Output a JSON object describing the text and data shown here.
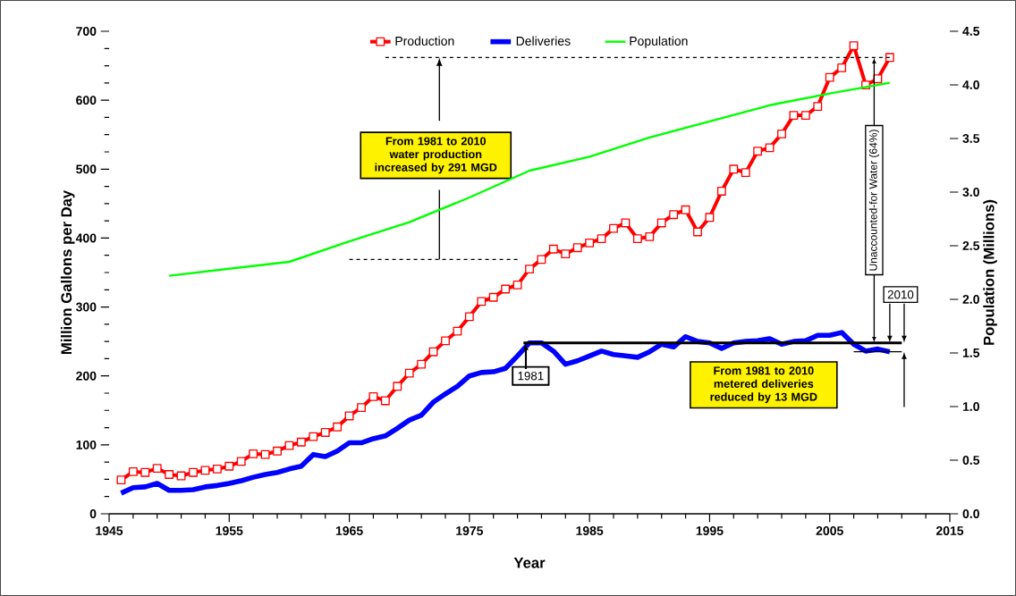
{
  "chart_data": {
    "type": "line",
    "xlabel": "Year",
    "ylabel": "Million Gallons per Day",
    "y2label": "Population (Millions)",
    "xlim": [
      1945,
      2015
    ],
    "xticks": [
      1945,
      1955,
      1965,
      1975,
      1985,
      1995,
      2005,
      2015
    ],
    "ylim": [
      0,
      700
    ],
    "yticks": [
      0,
      100,
      200,
      300,
      400,
      500,
      600,
      700
    ],
    "y2lim": [
      0,
      4.5
    ],
    "y2ticks": [
      {
        "value": 0,
        "label": "0.0"
      },
      {
        "value": 0.5,
        "label": "0.5"
      },
      {
        "value": 1,
        "label": "1.0"
      },
      {
        "value": 1.5,
        "label": "1.5"
      },
      {
        "value": 2,
        "label": "2.0"
      },
      {
        "value": 2.5,
        "label": "2.5"
      },
      {
        "value": 3,
        "label": "3.0"
      },
      {
        "value": 3.5,
        "label": "3.5"
      },
      {
        "value": 4,
        "label": "4.0"
      },
      {
        "value": 4.5,
        "label": "4.5"
      }
    ],
    "grid": false,
    "legend": "top",
    "ref_lines": [
      {
        "axis": "y",
        "value": 248,
        "color": "#000000"
      }
    ],
    "series": [
      {
        "name": "Production",
        "color": "#ff0000",
        "marker": "square",
        "x": [
          1946,
          1947,
          1948,
          1949,
          1950,
          1951,
          1952,
          1953,
          1954,
          1955,
          1956,
          1957,
          1958,
          1959,
          1960,
          1961,
          1962,
          1963,
          1964,
          1965,
          1966,
          1967,
          1968,
          1969,
          1970,
          1971,
          1972,
          1973,
          1974,
          1975,
          1976,
          1977,
          1978,
          1979,
          1980,
          1981,
          1982,
          1983,
          1984,
          1985,
          1986,
          1987,
          1988,
          1989,
          1990,
          1991,
          1992,
          1993,
          1994,
          1995,
          1996,
          1997,
          1998,
          1999,
          2000,
          2001,
          2002,
          2003,
          2004,
          2005,
          2006,
          2007,
          2008,
          2009,
          2010
        ],
        "values": [
          49,
          61,
          60,
          66,
          57,
          55,
          60,
          63,
          65,
          69,
          76,
          87,
          86,
          91,
          99,
          104,
          112,
          118,
          126,
          142,
          154,
          170,
          164,
          185,
          204,
          217,
          235,
          251,
          265,
          286,
          308,
          314,
          326,
          332,
          355,
          369,
          384,
          377,
          386,
          393,
          399,
          414,
          422,
          399,
          402,
          422,
          434,
          441,
          409,
          430,
          468,
          500,
          495,
          526,
          531,
          551,
          578,
          578,
          591,
          633,
          647,
          679,
          622,
          631,
          662
        ]
      },
      {
        "name": "Deliveries",
        "color": "#0000ff",
        "marker": "none",
        "x": [
          1946,
          1947,
          1948,
          1949,
          1950,
          1951,
          1952,
          1953,
          1954,
          1955,
          1956,
          1957,
          1958,
          1959,
          1960,
          1961,
          1962,
          1963,
          1964,
          1965,
          1966,
          1967,
          1968,
          1969,
          1970,
          1971,
          1972,
          1973,
          1974,
          1975,
          1976,
          1977,
          1978,
          1979,
          1980,
          1981,
          1982,
          1983,
          1984,
          1985,
          1986,
          1987,
          1988,
          1989,
          1990,
          1991,
          1992,
          1993,
          1994,
          1995,
          1996,
          1997,
          1998,
          1999,
          2000,
          2001,
          2002,
          2003,
          2004,
          2005,
          2006,
          2007,
          2008,
          2009,
          2010
        ],
        "values": [
          30,
          38,
          39,
          44,
          34,
          34,
          35,
          39,
          41,
          44,
          48,
          53,
          57,
          60,
          65,
          69,
          86,
          83,
          91,
          103,
          103,
          109,
          113,
          124,
          136,
          143,
          162,
          174,
          185,
          200,
          205,
          206,
          211,
          229,
          248,
          248,
          236,
          217,
          222,
          229,
          236,
          231,
          229,
          227,
          235,
          246,
          242,
          257,
          250,
          248,
          240,
          248,
          250,
          251,
          254,
          246,
          250,
          251,
          259,
          259,
          263,
          246,
          236,
          239,
          235
        ]
      },
      {
        "name": "Population",
        "color": "#00ff00",
        "marker": "none",
        "axis": "y2",
        "x": [
          1950,
          1960,
          1965,
          1970,
          1975,
          1980,
          1985,
          1990,
          1995,
          2000,
          2005,
          2010
        ],
        "values": [
          2.22,
          2.35,
          2.54,
          2.72,
          2.95,
          3.2,
          3.33,
          3.51,
          3.66,
          3.81,
          3.92,
          4.02
        ]
      }
    ],
    "annotations": [
      "From 1981 to 2010 water production increased by 291 MGD",
      "From 1981 to 2010 metered deliveries reduced by 13 MGD",
      {
        "text": "1981",
        "x": 1981,
        "y": 248
      },
      "2010",
      "Unaccounted-for Water (64%)"
    ]
  }
}
